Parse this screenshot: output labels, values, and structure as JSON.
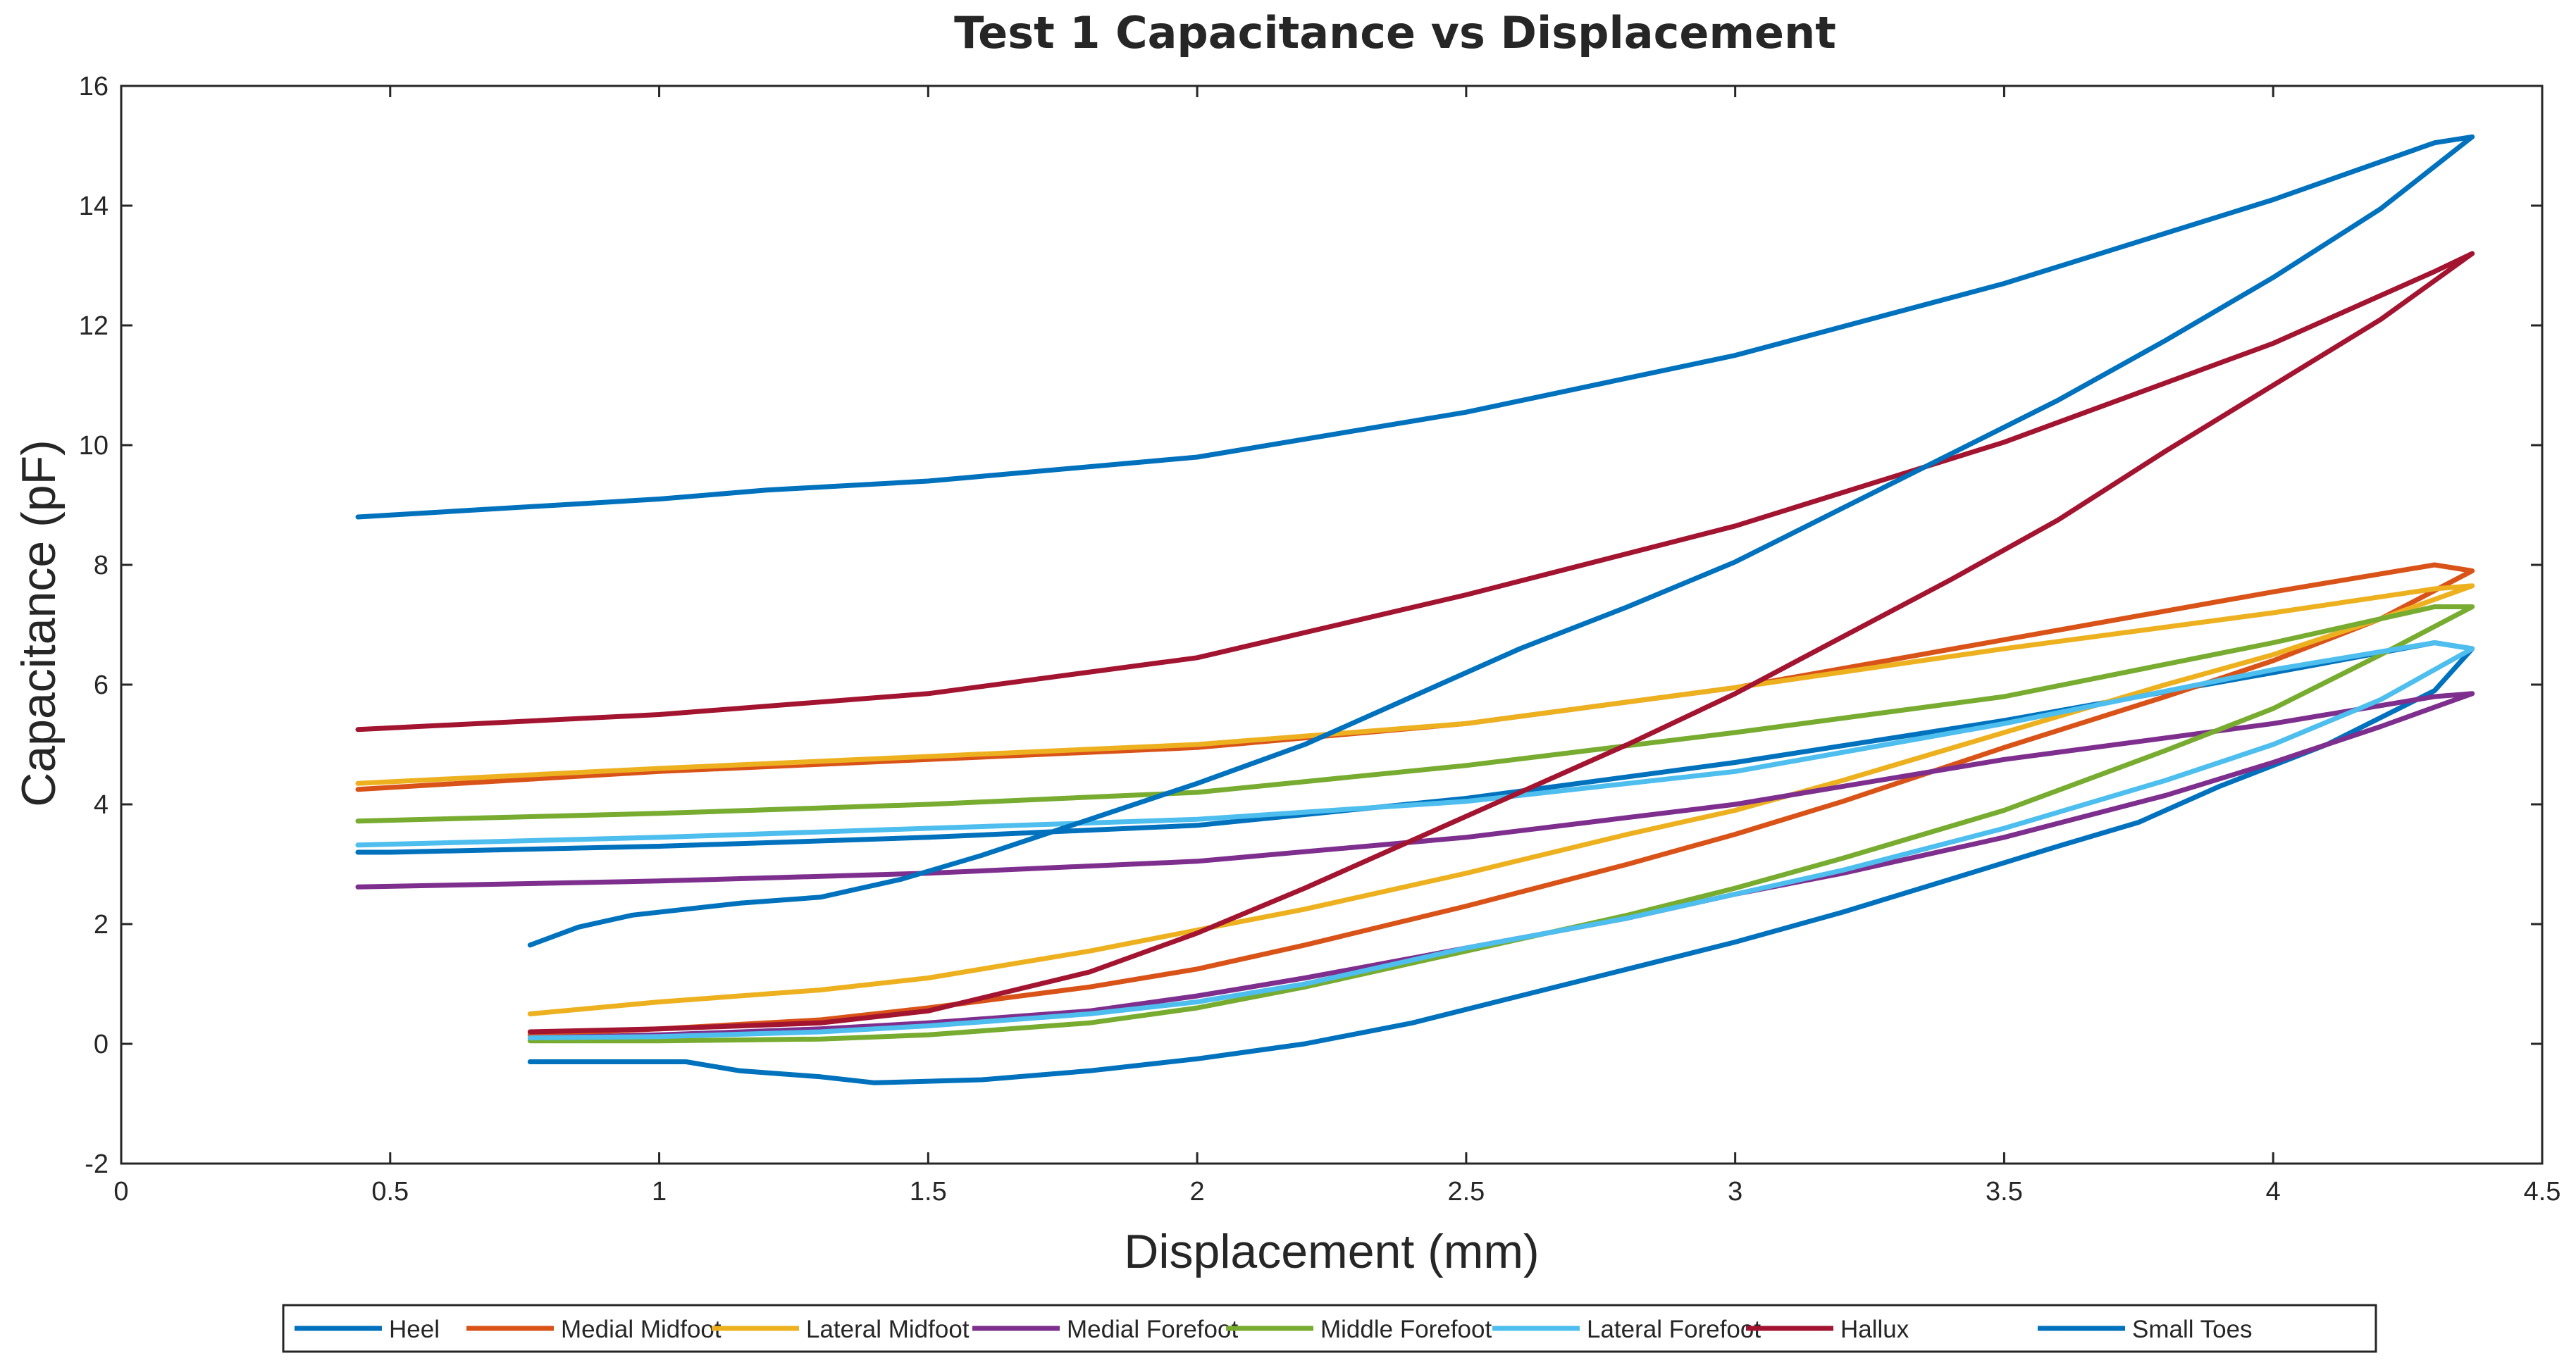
{
  "chart_data": {
    "type": "line",
    "title": "Test 1 Capacitance vs Displacement",
    "xlabel": "Displacement (mm)",
    "ylabel": "Capacitance (pF)",
    "xlim": [
      0,
      4.5
    ],
    "ylim": [
      -2,
      16
    ],
    "grid": false,
    "legend_position": "bottom-outside",
    "x_ticks": [
      0,
      0.5,
      1,
      1.5,
      2,
      2.5,
      3,
      3.5,
      4,
      4.5
    ],
    "x_tick_labels": [
      "0",
      "0.5",
      "1",
      "1.5",
      "2",
      "2.5",
      "3",
      "3.5",
      "4",
      "4.5"
    ],
    "y_ticks": [
      -2,
      0,
      2,
      4,
      6,
      8,
      10,
      12,
      14,
      16
    ],
    "y_tick_labels": [
      "-2",
      "0",
      "2",
      "4",
      "6",
      "8",
      "10",
      "12",
      "14",
      "16"
    ],
    "series": [
      {
        "name": "Heel",
        "color": "#0072BD",
        "x": [
          0.76,
          0.9,
          1.05,
          1.15,
          1.3,
          1.4,
          1.6,
          1.8,
          2.0,
          2.2,
          2.4,
          2.6,
          2.8,
          3.0,
          3.2,
          3.4,
          3.6,
          3.75,
          3.9,
          4.1,
          4.3,
          4.37,
          4.3,
          4.0,
          3.5,
          3.0,
          2.5,
          2.0,
          1.5,
          1.0,
          0.5,
          0.44
        ],
        "y": [
          -0.3,
          -0.3,
          -0.3,
          -0.45,
          -0.55,
          -0.65,
          -0.6,
          -0.45,
          -0.25,
          0.0,
          0.35,
          0.8,
          1.25,
          1.7,
          2.2,
          2.75,
          3.3,
          3.7,
          4.3,
          5.0,
          5.9,
          6.6,
          6.7,
          6.2,
          5.4,
          4.7,
          4.1,
          3.65,
          3.45,
          3.3,
          3.2,
          3.2
        ]
      },
      {
        "name": "Medial Midfoot",
        "color": "#D95319",
        "x": [
          0.76,
          1.0,
          1.3,
          1.5,
          1.8,
          2.0,
          2.2,
          2.5,
          2.8,
          3.0,
          3.2,
          3.5,
          3.8,
          4.0,
          4.2,
          4.37,
          4.3,
          4.0,
          3.5,
          3.0,
          2.5,
          2.0,
          1.5,
          1.0,
          0.44
        ],
        "y": [
          0.15,
          0.25,
          0.4,
          0.6,
          0.95,
          1.25,
          1.65,
          2.3,
          3.0,
          3.5,
          4.05,
          4.95,
          5.8,
          6.4,
          7.1,
          7.9,
          8.0,
          7.55,
          6.75,
          5.95,
          5.35,
          4.95,
          4.75,
          4.55,
          4.25
        ]
      },
      {
        "name": "Lateral Midfoot",
        "color": "#EDB120",
        "x": [
          0.76,
          1.0,
          1.3,
          1.5,
          1.8,
          2.0,
          2.2,
          2.5,
          2.8,
          3.0,
          3.2,
          3.5,
          3.8,
          4.0,
          4.2,
          4.37,
          4.3,
          4.0,
          3.5,
          3.0,
          2.5,
          2.0,
          1.5,
          1.0,
          0.44
        ],
        "y": [
          0.5,
          0.7,
          0.9,
          1.1,
          1.55,
          1.9,
          2.25,
          2.85,
          3.5,
          3.9,
          4.4,
          5.2,
          6.0,
          6.5,
          7.1,
          7.65,
          7.6,
          7.2,
          6.6,
          5.95,
          5.35,
          5.0,
          4.8,
          4.6,
          4.35
        ]
      },
      {
        "name": "Medial Forefoot",
        "color": "#7E2F8E",
        "x": [
          0.76,
          1.0,
          1.3,
          1.5,
          1.8,
          2.0,
          2.2,
          2.5,
          2.8,
          3.0,
          3.2,
          3.5,
          3.8,
          4.0,
          4.2,
          4.37,
          4.3,
          4.0,
          3.5,
          3.0,
          2.5,
          2.0,
          1.5,
          1.0,
          0.44
        ],
        "y": [
          0.1,
          0.15,
          0.25,
          0.35,
          0.55,
          0.8,
          1.1,
          1.6,
          2.1,
          2.5,
          2.85,
          3.45,
          4.15,
          4.7,
          5.3,
          5.85,
          5.8,
          5.35,
          4.75,
          4.0,
          3.45,
          3.05,
          2.85,
          2.72,
          2.62
        ]
      },
      {
        "name": "Middle Forefoot",
        "color": "#77AC30",
        "x": [
          0.76,
          1.0,
          1.3,
          1.5,
          1.8,
          2.0,
          2.2,
          2.5,
          2.8,
          3.0,
          3.2,
          3.5,
          3.8,
          4.0,
          4.2,
          4.37,
          4.3,
          4.0,
          3.5,
          3.0,
          2.5,
          2.0,
          1.5,
          1.0,
          0.44
        ],
        "y": [
          0.05,
          0.05,
          0.08,
          0.15,
          0.35,
          0.6,
          0.95,
          1.55,
          2.15,
          2.6,
          3.1,
          3.9,
          4.9,
          5.6,
          6.5,
          7.3,
          7.3,
          6.7,
          5.8,
          5.2,
          4.65,
          4.2,
          4.0,
          3.85,
          3.72
        ]
      },
      {
        "name": "Lateral Forefoot",
        "color": "#4DBEEE",
        "x": [
          0.76,
          1.0,
          1.3,
          1.5,
          1.8,
          2.0,
          2.2,
          2.5,
          2.8,
          3.0,
          3.2,
          3.5,
          3.8,
          4.0,
          4.2,
          4.37,
          4.3,
          4.0,
          3.5,
          3.0,
          2.5,
          2.0,
          1.5,
          1.0,
          0.44
        ],
        "y": [
          0.1,
          0.12,
          0.2,
          0.3,
          0.5,
          0.7,
          1.0,
          1.6,
          2.1,
          2.5,
          2.9,
          3.6,
          4.4,
          5.0,
          5.75,
          6.6,
          6.7,
          6.25,
          5.35,
          4.55,
          4.05,
          3.75,
          3.6,
          3.45,
          3.32
        ]
      },
      {
        "name": "Hallux",
        "color": "#A2142F",
        "x": [
          0.76,
          1.0,
          1.3,
          1.5,
          1.8,
          2.0,
          2.2,
          2.4,
          2.6,
          2.8,
          3.0,
          3.2,
          3.4,
          3.6,
          3.8,
          4.0,
          4.2,
          4.37,
          4.3,
          4.0,
          3.5,
          3.0,
          2.5,
          2.0,
          1.5,
          1.0,
          0.44
        ],
        "y": [
          0.2,
          0.25,
          0.35,
          0.55,
          1.2,
          1.85,
          2.6,
          3.4,
          4.2,
          5.0,
          5.85,
          6.8,
          7.75,
          8.75,
          9.9,
          11.0,
          12.1,
          13.2,
          12.9,
          11.7,
          10.05,
          8.65,
          7.5,
          6.45,
          5.85,
          5.5,
          5.25
        ]
      },
      {
        "name": "Small Toes",
        "color": "#0072BD",
        "x": [
          0.76,
          0.85,
          0.95,
          1.05,
          1.15,
          1.3,
          1.45,
          1.6,
          1.8,
          2.0,
          2.2,
          2.4,
          2.6,
          2.8,
          3.0,
          3.2,
          3.4,
          3.6,
          3.8,
          4.0,
          4.2,
          4.37,
          4.3,
          4.0,
          3.5,
          3.0,
          2.5,
          2.0,
          1.5,
          1.2,
          1.0,
          0.44
        ],
        "y": [
          1.65,
          1.95,
          2.15,
          2.25,
          2.35,
          2.45,
          2.75,
          3.15,
          3.75,
          4.35,
          5.0,
          5.8,
          6.6,
          7.3,
          8.05,
          8.95,
          9.85,
          10.75,
          11.75,
          12.8,
          13.95,
          15.15,
          15.05,
          14.1,
          12.7,
          11.5,
          10.55,
          9.8,
          9.4,
          9.25,
          9.1,
          8.8
        ]
      }
    ]
  }
}
